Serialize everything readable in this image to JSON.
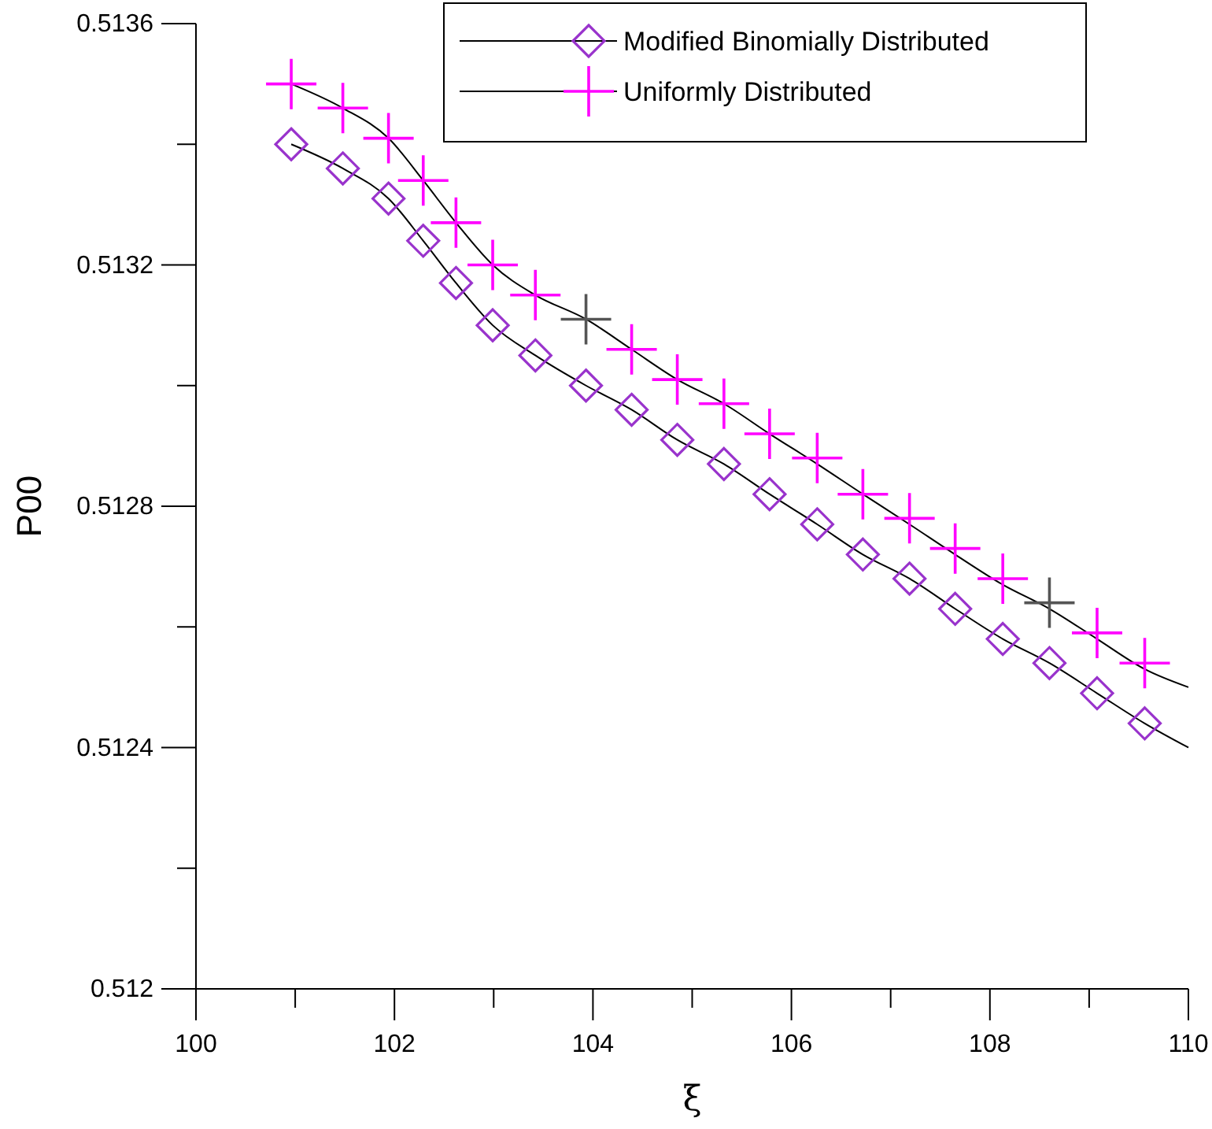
{
  "chart_data": {
    "type": "line",
    "xlabel": "ξ",
    "ylabel": "P00",
    "xlim": [
      100,
      110
    ],
    "xticks": [
      100,
      {
        "value": 101,
        "label": null
      },
      102,
      {
        "value": 103,
        "label": null
      },
      104,
      {
        "value": 105,
        "label": null
      },
      106,
      {
        "value": 107,
        "label": null
      },
      108,
      {
        "value": 109,
        "label": null
      },
      110
    ],
    "ylim": [
      0.512,
      0.5136
    ],
    "yticks": [
      0.512,
      {
        "value": 0.5122,
        "label": null
      },
      0.5124,
      {
        "value": 0.5126,
        "label": null
      },
      0.5128,
      {
        "value": 0.513,
        "label": null
      },
      0.5132,
      {
        "value": 0.5134,
        "label": null
      },
      0.5136
    ],
    "grid": false,
    "legend": "top right",
    "series": [
      {
        "type": "line",
        "color": "#000000",
        "marker": "none",
        "x": [
          100.96,
          101.48,
          101.94,
          102.29,
          102.62,
          102.99,
          103.42,
          103.93,
          104.39,
          104.85,
          105.32,
          105.78,
          106.26,
          106.72,
          107.19,
          107.65,
          108.13,
          108.6,
          109.08,
          109.56,
          110
        ],
        "values": [
          0.5134,
          0.51336,
          0.51331,
          0.51324,
          0.51317,
          0.5131,
          0.51305,
          0.513,
          0.51296,
          0.51291,
          0.51287,
          0.51282,
          0.51277,
          0.51272,
          0.51268,
          0.51263,
          0.51258,
          0.51254,
          0.51249,
          0.51244,
          0.5124
        ]
      },
      {
        "color": "#000000",
        "marker": "none",
        "x": [
          100.96,
          101.48,
          101.94,
          102.29,
          102.62,
          102.99,
          103.42,
          103.93,
          104.39,
          104.85,
          105.32,
          105.78,
          106.26,
          106.72,
          107.19,
          107.65,
          108.13,
          108.6,
          109.08,
          109.56,
          110
        ],
        "values": [
          0.5135,
          0.51346,
          0.51341,
          0.51334,
          0.51327,
          0.5132,
          0.51315,
          0.51311,
          0.51306,
          0.51301,
          0.51297,
          0.51292,
          0.51287,
          0.51282,
          0.51277,
          0.51272,
          0.51267,
          0.51263,
          0.51258,
          0.51253,
          0.5125
        ]
      },
      {
        "type": "scatter",
        "name": "Modified Binomially Distributed",
        "color": "#9933cc",
        "marker": "diamond",
        "x": [
          100.96,
          101.48,
          101.94,
          102.29,
          102.62,
          102.99,
          103.42,
          103.93,
          104.39,
          104.85,
          105.32,
          105.78,
          106.26,
          106.72,
          107.19,
          107.65,
          108.13,
          108.6,
          109.08,
          109.56
        ],
        "values": [
          0.5134,
          0.51336,
          0.51331,
          0.51324,
          0.51317,
          0.5131,
          0.51305,
          0.513,
          0.51296,
          0.51291,
          0.51287,
          0.51282,
          0.51277,
          0.51272,
          0.51268,
          0.51263,
          0.51258,
          0.51254,
          0.51249,
          0.51244
        ]
      },
      {
        "type": "scatter",
        "name": "Uniformly Distributed",
        "color": "#ff00ff",
        "colors": [
          "#ff00ff",
          "#ff00ff",
          "#ff00ff",
          "#ff00ff",
          "#ff00ff",
          "#ff00ff",
          "#ff00ff",
          "#555555",
          "#ff00ff",
          "#ff00ff",
          "#ff00ff",
          "#ff00ff",
          "#ff00ff",
          "#ff00ff",
          "#ff00ff",
          "#ff00ff",
          "#ff00ff",
          "#555555",
          "#ff00ff",
          "#ff00ff"
        ],
        "marker": "cross",
        "x": [
          100.96,
          101.48,
          101.94,
          102.29,
          102.62,
          102.99,
          103.42,
          103.93,
          104.39,
          104.85,
          105.32,
          105.78,
          106.26,
          106.72,
          107.19,
          107.65,
          108.13,
          108.6,
          109.08,
          109.56
        ],
        "values": [
          0.5135,
          0.51346,
          0.51341,
          0.51334,
          0.51327,
          0.5132,
          0.51315,
          0.51311,
          0.51306,
          0.51301,
          0.51297,
          0.51292,
          0.51288,
          0.51282,
          0.51278,
          0.51273,
          0.51268,
          0.51264,
          0.51259,
          0.51254
        ]
      }
    ]
  }
}
